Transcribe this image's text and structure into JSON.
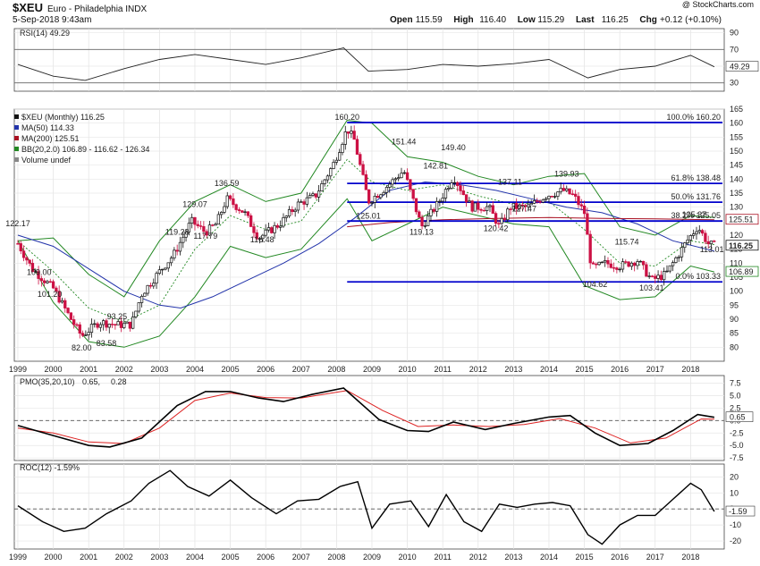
{
  "header": {
    "symbol": "$XEU",
    "name": "Euro - Philadelphia INDX",
    "date": "5-Sep-2018 9:43am",
    "watermark": "@ StockCharts.com",
    "quote": [
      {
        "label": "Open",
        "value": "115.59"
      },
      {
        "label": "High",
        "value": "116.40"
      },
      {
        "label": "Low",
        "value": "115.29"
      },
      {
        "label": "Last",
        "value": "116.25"
      },
      {
        "label": "Chg",
        "value": "+0.12 (+0.10%)"
      }
    ]
  },
  "colors": {
    "bullish": "#111111",
    "bearish": "#cc1144",
    "ma50": "#2233aa",
    "ma200": "#aa1122",
    "bb": "#228822",
    "fib": "#0000cc",
    "pmo": "#000000",
    "pmo_signal": "#dd2222",
    "roc": "#000000",
    "rsi": "#222222",
    "rsi_fill": "#447744"
  },
  "legend": {
    "price": "$XEU (Monthly) 116.25",
    "ma50": "MA(50) 114.33",
    "ma200": "MA(200) 125.51",
    "bb": "BB(20,2.0) 106.89 - 116.62 - 126.34",
    "volume": "Volume undef",
    "rsi": "RSI(14) 49.29",
    "pmo_label": "PMO(35,20,10)",
    "pmo_value": "0.65,",
    "pmo_signal_value": "0.28",
    "roc": "ROC(12) -1.59%"
  },
  "chart_data": [
    {
      "type": "line",
      "title": "RSI(14) 49.29",
      "ylim": [
        20,
        95
      ],
      "yticks": [
        "90",
        "70",
        "50",
        "30"
      ],
      "reference_lines": [
        70,
        30
      ],
      "last_value": "49.29",
      "series": [
        {
          "name": "RSI(14)",
          "x": [
            1999,
            2000,
            2000.9,
            2002,
            2003,
            2004,
            2005,
            2006,
            2007,
            2008.2,
            2008.9,
            2010,
            2011,
            2012,
            2013,
            2014,
            2015.1,
            2016,
            2017,
            2018,
            2018.67
          ],
          "values": [
            52,
            38,
            33,
            47,
            58,
            64,
            58,
            52,
            60,
            72,
            44,
            46,
            52,
            50,
            53,
            58,
            36,
            46,
            50,
            63,
            49.29
          ]
        }
      ]
    },
    {
      "type": "candlestick",
      "title": "$XEU (Monthly) 116.25",
      "ylim": [
        75,
        165
      ],
      "yticks": [
        "165",
        "160",
        "155",
        "150",
        "145",
        "140",
        "135",
        "130",
        "125",
        "120",
        "115",
        "110",
        "105",
        "100",
        "95",
        "90",
        "85",
        "80"
      ],
      "x_tick_labels": [
        "1999",
        "2000",
        "2001",
        "2002",
        "2003",
        "2004",
        "2005",
        "2006",
        "2007",
        "2008",
        "2009",
        "2010",
        "2011",
        "2012",
        "2013",
        "2014",
        "2015",
        "2016",
        "2017",
        "2018"
      ],
      "last_value": "116.25",
      "series": [
        {
          "name": "$XEU",
          "x": [
            1999,
            1999.4,
            2000,
            2000.5,
            2000.8,
            2001.3,
            2001.8,
            2002.2,
            2002.5,
            2003,
            2003.4,
            2003.9,
            2004.3,
            2004.6,
            2004.9,
            2005.4,
            2005.8,
            2006.4,
            2006.9,
            2007.4,
            2007.9,
            2008.3,
            2008.5,
            2008.9,
            2009.3,
            2009.9,
            2010.4,
            2010.9,
            2011.3,
            2011.8,
            2012.3,
            2012.6,
            2012.9,
            2013.4,
            2013.9,
            2014.4,
            2014.7,
            2015,
            2015.2,
            2015.6,
            2016,
            2016.5,
            2016.9,
            2017.3,
            2017.9,
            2018.2,
            2018.5,
            2018.67
          ],
          "values": [
            117,
            108,
            101,
            90,
            84,
            89,
            88,
            88,
            99,
            107,
            113,
            125,
            121,
            124,
            133,
            128,
            119,
            124,
            131,
            134,
            145,
            158,
            154,
            132,
            136,
            143,
            123,
            132,
            141,
            130,
            130,
            123,
            130,
            130,
            134,
            136,
            134,
            128,
            108,
            110,
            109,
            111,
            104,
            106,
            118,
            123,
            117,
            116.25
          ]
        },
        {
          "name": "MA(50)",
          "x": [
            1999,
            2000,
            2001,
            2002,
            2003,
            2003.6,
            2004.5,
            2005.5,
            2006.5,
            2007.5,
            2008.5,
            2009.5,
            2010.5,
            2011.5,
            2012.5,
            2013.5,
            2014.5,
            2015.5,
            2016.5,
            2017.5,
            2018.67
          ],
          "values": [
            120,
            116,
            108,
            100,
            95,
            94,
            98,
            104,
            110,
            117,
            126,
            136,
            139,
            138,
            136,
            133,
            130,
            128,
            124,
            118,
            114.33
          ]
        },
        {
          "name": "MA(200)",
          "x": [
            2008.3,
            2009.5,
            2011,
            2012.5,
            2014,
            2015.5,
            2017,
            2018.67
          ],
          "values": [
            123,
            124.5,
            125.5,
            126,
            126.3,
            126,
            125.8,
            125.51
          ]
        },
        {
          "name": "BB upper",
          "x": [
            1999,
            2000,
            2001,
            2002,
            2003,
            2004,
            2005,
            2006,
            2007,
            2008.3,
            2009,
            2010,
            2011,
            2012,
            2013,
            2014,
            2015,
            2016,
            2017,
            2018,
            2018.67
          ],
          "values": [
            118,
            119,
            106,
            98,
            118,
            132,
            138,
            132,
            135,
            161,
            160,
            148,
            146,
            141,
            138,
            141,
            142,
            123,
            120,
            127,
            126.34
          ]
        },
        {
          "name": "BB middle",
          "x": [
            1999,
            2000,
            2001,
            2002,
            2003,
            2004,
            2005,
            2006,
            2007,
            2008.3,
            2009,
            2010,
            2011,
            2012,
            2013,
            2014,
            2015,
            2016,
            2017,
            2018,
            2018.67
          ],
          "values": [
            118,
            107,
            94,
            89,
            95,
            115,
            127,
            122,
            125,
            147,
            139,
            136,
            138,
            134,
            131,
            132,
            122,
            110,
            109,
            118,
            116.62
          ]
        },
        {
          "name": "BB lower",
          "x": [
            1999,
            2000,
            2001,
            2002,
            2003,
            2004,
            2005,
            2006,
            2007,
            2008.3,
            2009,
            2010,
            2011,
            2012,
            2013,
            2014,
            2015,
            2016,
            2017,
            2018,
            2018.67
          ],
          "values": [
            118,
            96,
            82,
            80,
            84,
            98,
            116,
            112,
            115,
            133,
            118,
            124,
            130,
            127,
            124,
            123,
            102,
            97,
            98,
            109,
            106.89
          ]
        }
      ],
      "fib_levels": [
        {
          "label": "100.0% 160.20",
          "value": 160.2
        },
        {
          "label": "61.8% 138.48",
          "value": 138.48
        },
        {
          "label": "50.0% 131.76",
          "value": 131.76
        },
        {
          "label": "38.2% 125.05",
          "value": 125.05
        },
        {
          "label": "0.0% 103.33",
          "value": 103.33
        }
      ],
      "annotations": [
        {
          "text": "122.17",
          "x": 1999,
          "y": 122.17
        },
        {
          "text": "109.00",
          "x": 1999.6,
          "y": 109
        },
        {
          "text": "101.20",
          "x": 1999.9,
          "y": 101.2
        },
        {
          "text": "82.00",
          "x": 2000.8,
          "y": 82
        },
        {
          "text": "83.58",
          "x": 2001.5,
          "y": 83.58
        },
        {
          "text": "93.25",
          "x": 2001.8,
          "y": 93.25
        },
        {
          "text": "119.28",
          "x": 2003.5,
          "y": 119.28
        },
        {
          "text": "129.07",
          "x": 2004,
          "y": 129.07
        },
        {
          "text": "117.79",
          "x": 2004.3,
          "y": 117.79
        },
        {
          "text": "136.59",
          "x": 2004.9,
          "y": 136.59
        },
        {
          "text": "116.48",
          "x": 2005.9,
          "y": 116.48
        },
        {
          "text": "160.20",
          "x": 2008.3,
          "y": 160.2
        },
        {
          "text": "151.44",
          "x": 2009.9,
          "y": 151.44
        },
        {
          "text": "125.01",
          "x": 2008.9,
          "y": 125.01
        },
        {
          "text": "142.81",
          "x": 2010.8,
          "y": 142.81
        },
        {
          "text": "149.40",
          "x": 2011.3,
          "y": 149.4
        },
        {
          "text": "119.13",
          "x": 2010.4,
          "y": 119.13
        },
        {
          "text": "137.11",
          "x": 2012.9,
          "y": 137.11
        },
        {
          "text": "127.47",
          "x": 2013.3,
          "y": 127.47
        },
        {
          "text": "120.42",
          "x": 2012.5,
          "y": 120.42
        },
        {
          "text": "139.93",
          "x": 2014.5,
          "y": 139.93
        },
        {
          "text": "115.74",
          "x": 2016.2,
          "y": 115.74
        },
        {
          "text": "104.62",
          "x": 2015.3,
          "y": 104.62
        },
        {
          "text": "103.41",
          "x": 2016.9,
          "y": 103.41
        },
        {
          "text": "125.37",
          "x": 2018.1,
          "y": 125.37
        },
        {
          "text": "113.01",
          "x": 2018.6,
          "y": 113.01
        }
      ],
      "right_labels": [
        {
          "text": "125.51",
          "value": 125.51
        },
        {
          "text": "116.25",
          "value": 116.25
        },
        {
          "text": "106.89",
          "value": 106.89
        }
      ]
    },
    {
      "type": "line",
      "title": "PMO(35,20,10) 0.65, 0.28",
      "ylim": [
        -8,
        9
      ],
      "yticks": [
        "7.5",
        "5.0",
        "2.5",
        "0.0",
        "-2.5",
        "-5.0",
        "-7.5"
      ],
      "last_value": "0.65",
      "series": [
        {
          "name": "PMO",
          "x": [
            1999,
            2000,
            2001,
            2001.6,
            2002.5,
            2003.5,
            2004.3,
            2005,
            2005.8,
            2006.5,
            2007.3,
            2008.2,
            2009.2,
            2010,
            2010.6,
            2011.3,
            2012.2,
            2013,
            2014,
            2014.6,
            2015.3,
            2016,
            2016.8,
            2017.5,
            2018.2,
            2018.67
          ],
          "values": [
            -1,
            -3,
            -5,
            -5.3,
            -3.5,
            3,
            5.8,
            5.8,
            4.5,
            3.8,
            5.2,
            6.5,
            0.2,
            -2,
            -2.2,
            -0.3,
            -1.8,
            -0.6,
            0.7,
            1,
            -2.5,
            -5,
            -4.6,
            -2,
            1.2,
            0.65
          ]
        },
        {
          "name": "Signal",
          "x": [
            1999,
            2000,
            2001,
            2002,
            2003,
            2004,
            2005,
            2006,
            2007,
            2008.3,
            2009.3,
            2010.3,
            2011.3,
            2012.3,
            2013.3,
            2014.3,
            2015.3,
            2016.3,
            2017.3,
            2018.3,
            2018.67
          ],
          "values": [
            -1.5,
            -2.5,
            -4.3,
            -4.6,
            -1.5,
            4,
            5.5,
            4.6,
            4.5,
            6,
            2,
            -1.2,
            -0.9,
            -1.2,
            -0.8,
            0.4,
            -1.5,
            -4.5,
            -3.5,
            0.3,
            0.28
          ]
        }
      ]
    },
    {
      "type": "line",
      "title": "ROC(12) -1.59%",
      "ylim": [
        -25,
        28
      ],
      "yticks": [
        "20",
        "10",
        "0",
        "-10",
        "-20"
      ],
      "x_tick_labels": [
        "1999",
        "2000",
        "2001",
        "2002",
        "2003",
        "2004",
        "2005",
        "2006",
        "2007",
        "2008",
        "2009",
        "2010",
        "2011",
        "2012",
        "2013",
        "2014",
        "2015",
        "2016",
        "2017",
        "2018"
      ],
      "last_value": "-1.59",
      "series": [
        {
          "name": "ROC(12)",
          "x": [
            1999,
            1999.7,
            2000.3,
            2000.9,
            2001.5,
            2002.2,
            2002.7,
            2003.3,
            2003.8,
            2004.4,
            2005,
            2005.6,
            2006.3,
            2006.9,
            2007.5,
            2008.1,
            2008.6,
            2009,
            2009.5,
            2010.1,
            2010.6,
            2011.1,
            2011.6,
            2012.1,
            2012.6,
            2013.1,
            2013.6,
            2014.1,
            2014.6,
            2015.1,
            2015.5,
            2016,
            2016.5,
            2017,
            2017.5,
            2018,
            2018.3,
            2018.67
          ],
          "values": [
            2,
            -8,
            -14,
            -12,
            -3,
            5,
            16,
            24,
            14,
            8,
            18,
            7,
            -3,
            5,
            6,
            14,
            17,
            -12,
            3,
            5,
            -11,
            9,
            -8,
            -14,
            3,
            1,
            3,
            4,
            2,
            -16,
            -22,
            -10,
            -4,
            -4,
            6,
            16,
            12,
            -1.59
          ]
        }
      ]
    }
  ]
}
